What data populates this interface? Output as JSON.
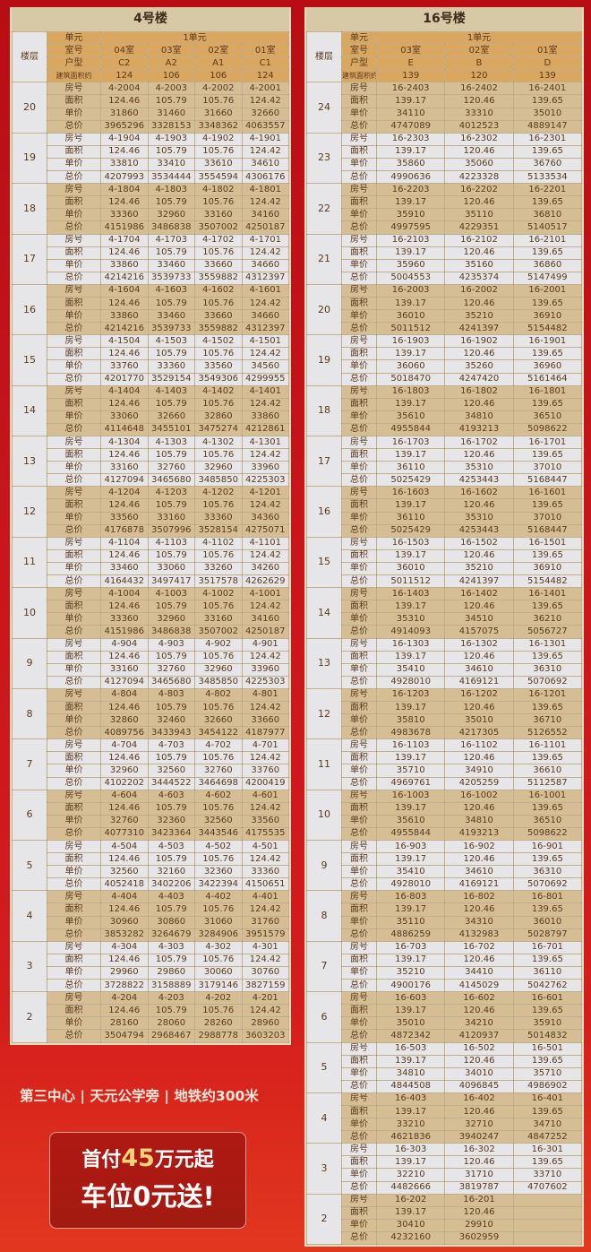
{
  "row_labels": [
    "房号",
    "面积",
    "单价",
    "总价"
  ],
  "left": {
    "title": "4号楼",
    "h": {
      "floor": "楼层",
      "unit_label": "单元",
      "unit": "1单元",
      "room_label": "室号",
      "rooms": [
        "04室",
        "03室",
        "02室",
        "01室"
      ],
      "type_label": "户型",
      "types": [
        "C2",
        "A2",
        "A1",
        "C1"
      ],
      "area_label": "建筑面积约",
      "areas": [
        "124",
        "106",
        "106",
        "124"
      ]
    },
    "floors": [
      {
        "f": "20",
        "rooms": [
          "4-2004",
          "4-2003",
          "4-2002",
          "4-2001"
        ],
        "area": [
          "124.46",
          "105.79",
          "105.76",
          "124.42"
        ],
        "price": [
          "31860",
          "31460",
          "31660",
          "32660"
        ],
        "total": [
          "3965296",
          "3328153",
          "3348362",
          "4063557"
        ]
      },
      {
        "f": "19",
        "rooms": [
          "4-1904",
          "4-1903",
          "4-1902",
          "4-1901"
        ],
        "area": [
          "124.46",
          "105.79",
          "105.76",
          "124.42"
        ],
        "price": [
          "33810",
          "33410",
          "33610",
          "34610"
        ],
        "total": [
          "4207993",
          "3534444",
          "3554594",
          "4306176"
        ]
      },
      {
        "f": "18",
        "rooms": [
          "4-1804",
          "4-1803",
          "4-1802",
          "4-1801"
        ],
        "area": [
          "124.46",
          "105.79",
          "105.76",
          "124.42"
        ],
        "price": [
          "33360",
          "32960",
          "33160",
          "34160"
        ],
        "total": [
          "4151986",
          "3486838",
          "3507002",
          "4250187"
        ]
      },
      {
        "f": "17",
        "rooms": [
          "4-1704",
          "4-1703",
          "4-1702",
          "4-1701"
        ],
        "area": [
          "124.46",
          "105.79",
          "105.76",
          "124.42"
        ],
        "price": [
          "33860",
          "33460",
          "33660",
          "34660"
        ],
        "total": [
          "4214216",
          "3539733",
          "3559882",
          "4312397"
        ]
      },
      {
        "f": "16",
        "rooms": [
          "4-1604",
          "4-1603",
          "4-1602",
          "4-1601"
        ],
        "area": [
          "124.46",
          "105.79",
          "105.76",
          "124.42"
        ],
        "price": [
          "33860",
          "33460",
          "33660",
          "34660"
        ],
        "total": [
          "4214216",
          "3539733",
          "3559882",
          "4312397"
        ]
      },
      {
        "f": "15",
        "rooms": [
          "4-1504",
          "4-1503",
          "4-1502",
          "4-1501"
        ],
        "area": [
          "124.46",
          "105.79",
          "105.76",
          "124.42"
        ],
        "price": [
          "33760",
          "33360",
          "33560",
          "34560"
        ],
        "total": [
          "4201770",
          "3529154",
          "3549306",
          "4299955"
        ]
      },
      {
        "f": "14",
        "rooms": [
          "4-1404",
          "4-1403",
          "4-1402",
          "4-1401"
        ],
        "area": [
          "124.46",
          "105.79",
          "105.76",
          "124.42"
        ],
        "price": [
          "33060",
          "32660",
          "32860",
          "33860"
        ],
        "total": [
          "4114648",
          "3455101",
          "3475274",
          "4212861"
        ]
      },
      {
        "f": "13",
        "rooms": [
          "4-1304",
          "4-1303",
          "4-1302",
          "4-1301"
        ],
        "area": [
          "124.46",
          "105.79",
          "105.76",
          "124.42"
        ],
        "price": [
          "33160",
          "32760",
          "32960",
          "33960"
        ],
        "total": [
          "4127094",
          "3465680",
          "3485850",
          "4225303"
        ]
      },
      {
        "f": "12",
        "rooms": [
          "4-1204",
          "4-1203",
          "4-1202",
          "4-1201"
        ],
        "area": [
          "124.46",
          "105.79",
          "105.76",
          "124.42"
        ],
        "price": [
          "33560",
          "33160",
          "33360",
          "34360"
        ],
        "total": [
          "4176878",
          "3507996",
          "3528154",
          "4275071"
        ]
      },
      {
        "f": "11",
        "rooms": [
          "4-1104",
          "4-1103",
          "4-1102",
          "4-1101"
        ],
        "area": [
          "124.46",
          "105.79",
          "105.76",
          "124.42"
        ],
        "price": [
          "33460",
          "33060",
          "33260",
          "34260"
        ],
        "total": [
          "4164432",
          "3497417",
          "3517578",
          "4262629"
        ]
      },
      {
        "f": "10",
        "rooms": [
          "4-1004",
          "4-1003",
          "4-1002",
          "4-1001"
        ],
        "area": [
          "124.46",
          "105.79",
          "105.76",
          "124.42"
        ],
        "price": [
          "33360",
          "32960",
          "33160",
          "34160"
        ],
        "total": [
          "4151986",
          "3486838",
          "3507002",
          "4250187"
        ]
      },
      {
        "f": "9",
        "rooms": [
          "4-904",
          "4-903",
          "4-902",
          "4-901"
        ],
        "area": [
          "124.46",
          "105.79",
          "105.76",
          "124.42"
        ],
        "price": [
          "33160",
          "32760",
          "32960",
          "33960"
        ],
        "total": [
          "4127094",
          "3465680",
          "3485850",
          "4225303"
        ]
      },
      {
        "f": "8",
        "rooms": [
          "4-804",
          "4-803",
          "4-802",
          "4-801"
        ],
        "area": [
          "124.46",
          "105.79",
          "105.76",
          "124.42"
        ],
        "price": [
          "32860",
          "32460",
          "32660",
          "33660"
        ],
        "total": [
          "4089756",
          "3433943",
          "3454122",
          "4187977"
        ]
      },
      {
        "f": "7",
        "rooms": [
          "4-704",
          "4-703",
          "4-702",
          "4-701"
        ],
        "area": [
          "124.46",
          "105.79",
          "105.76",
          "124.42"
        ],
        "price": [
          "32960",
          "32560",
          "32760",
          "33760"
        ],
        "total": [
          "4102202",
          "3444522",
          "3464698",
          "4200419"
        ]
      },
      {
        "f": "6",
        "rooms": [
          "4-604",
          "4-603",
          "4-602",
          "4-601"
        ],
        "area": [
          "124.46",
          "105.79",
          "105.76",
          "124.42"
        ],
        "price": [
          "32760",
          "32360",
          "32560",
          "33560"
        ],
        "total": [
          "4077310",
          "3423364",
          "3443546",
          "4175535"
        ]
      },
      {
        "f": "5",
        "rooms": [
          "4-504",
          "4-503",
          "4-502",
          "4-501"
        ],
        "area": [
          "124.46",
          "105.79",
          "105.76",
          "124.42"
        ],
        "price": [
          "32560",
          "32160",
          "32360",
          "33360"
        ],
        "total": [
          "4052418",
          "3402206",
          "3422394",
          "4150651"
        ]
      },
      {
        "f": "4",
        "rooms": [
          "4-404",
          "4-403",
          "4-402",
          "4-401"
        ],
        "area": [
          "124.46",
          "105.79",
          "105.76",
          "124.42"
        ],
        "price": [
          "30960",
          "30860",
          "31060",
          "31760"
        ],
        "total": [
          "3853282",
          "3264679",
          "3284906",
          "3951579"
        ]
      },
      {
        "f": "3",
        "rooms": [
          "4-304",
          "4-303",
          "4-302",
          "4-301"
        ],
        "area": [
          "124.46",
          "105.79",
          "105.76",
          "124.42"
        ],
        "price": [
          "29960",
          "29860",
          "30060",
          "30760"
        ],
        "total": [
          "3728822",
          "3158889",
          "3179146",
          "3827159"
        ]
      },
      {
        "f": "2",
        "rooms": [
          "4-204",
          "4-203",
          "4-202",
          "4-201"
        ],
        "area": [
          "124.46",
          "105.79",
          "105.76",
          "124.42"
        ],
        "price": [
          "28160",
          "28060",
          "28260",
          "28960"
        ],
        "total": [
          "3504794",
          "2968467",
          "2988778",
          "3603203"
        ]
      }
    ]
  },
  "right": {
    "title": "16号楼",
    "h": {
      "floor": "楼层",
      "unit_label": "单元",
      "unit": "1单元",
      "room_label": "室号",
      "rooms": [
        "03室",
        "02室",
        "01室"
      ],
      "type_label": "户型",
      "types": [
        "E",
        "B",
        "D"
      ],
      "area_label": "建筑面积约",
      "areas": [
        "139",
        "120",
        "139"
      ]
    },
    "floors": [
      {
        "f": "24",
        "rooms": [
          "16-2403",
          "16-2402",
          "16-2401"
        ],
        "area": [
          "139.17",
          "120.46",
          "139.65"
        ],
        "price": [
          "34110",
          "33310",
          "35010"
        ],
        "total": [
          "4747089",
          "4012523",
          "4889147"
        ]
      },
      {
        "f": "23",
        "rooms": [
          "16-2303",
          "16-2302",
          "16-2301"
        ],
        "area": [
          "139.17",
          "120.46",
          "139.65"
        ],
        "price": [
          "35860",
          "35060",
          "36760"
        ],
        "total": [
          "4990636",
          "4223328",
          "5133534"
        ]
      },
      {
        "f": "22",
        "rooms": [
          "16-2203",
          "16-2202",
          "16-2201"
        ],
        "area": [
          "139.17",
          "120.46",
          "139.65"
        ],
        "price": [
          "35910",
          "35110",
          "36810"
        ],
        "total": [
          "4997595",
          "4229351",
          "5140517"
        ]
      },
      {
        "f": "21",
        "rooms": [
          "16-2103",
          "16-2102",
          "16-2101"
        ],
        "area": [
          "139.17",
          "120.46",
          "139.65"
        ],
        "price": [
          "35960",
          "35160",
          "36860"
        ],
        "total": [
          "5004553",
          "4235374",
          "5147499"
        ]
      },
      {
        "f": "20",
        "rooms": [
          "16-2003",
          "16-2002",
          "16-2001"
        ],
        "area": [
          "139.17",
          "120.46",
          "139.65"
        ],
        "price": [
          "36010",
          "35210",
          "36910"
        ],
        "total": [
          "5011512",
          "4241397",
          "5154482"
        ]
      },
      {
        "f": "19",
        "rooms": [
          "16-1903",
          "16-1902",
          "16-1901"
        ],
        "area": [
          "139.17",
          "120.46",
          "139.65"
        ],
        "price": [
          "36060",
          "35260",
          "36960"
        ],
        "total": [
          "5018470",
          "4247420",
          "5161464"
        ]
      },
      {
        "f": "18",
        "rooms": [
          "16-1803",
          "16-1802",
          "16-1801"
        ],
        "area": [
          "139.17",
          "120.46",
          "139.65"
        ],
        "price": [
          "35610",
          "34810",
          "36510"
        ],
        "total": [
          "4955844",
          "4193213",
          "5098622"
        ]
      },
      {
        "f": "17",
        "rooms": [
          "16-1703",
          "16-1702",
          "16-1701"
        ],
        "area": [
          "139.17",
          "120.46",
          "139.65"
        ],
        "price": [
          "36110",
          "35310",
          "37010"
        ],
        "total": [
          "5025429",
          "4253443",
          "5168447"
        ]
      },
      {
        "f": "16",
        "rooms": [
          "16-1603",
          "16-1602",
          "16-1601"
        ],
        "area": [
          "139.17",
          "120.46",
          "139.65"
        ],
        "price": [
          "36110",
          "35310",
          "37010"
        ],
        "total": [
          "5025429",
          "4253443",
          "5168447"
        ]
      },
      {
        "f": "15",
        "rooms": [
          "16-1503",
          "16-1502",
          "16-1501"
        ],
        "area": [
          "139.17",
          "120.46",
          "139.65"
        ],
        "price": [
          "36010",
          "35210",
          "36910"
        ],
        "total": [
          "5011512",
          "4241397",
          "5154482"
        ]
      },
      {
        "f": "14",
        "rooms": [
          "16-1403",
          "16-1402",
          "16-1401"
        ],
        "area": [
          "139.17",
          "120.46",
          "139.65"
        ],
        "price": [
          "35310",
          "34510",
          "36210"
        ],
        "total": [
          "4914093",
          "4157075",
          "5056727"
        ]
      },
      {
        "f": "13",
        "rooms": [
          "16-1303",
          "16-1302",
          "16-1301"
        ],
        "area": [
          "139.17",
          "120.46",
          "139.65"
        ],
        "price": [
          "35410",
          "34610",
          "36310"
        ],
        "total": [
          "4928010",
          "4169121",
          "5070692"
        ]
      },
      {
        "f": "12",
        "rooms": [
          "16-1203",
          "16-1202",
          "16-1201"
        ],
        "area": [
          "139.17",
          "120.46",
          "139.65"
        ],
        "price": [
          "35810",
          "35010",
          "36710"
        ],
        "total": [
          "4983678",
          "4217305",
          "5126552"
        ]
      },
      {
        "f": "11",
        "rooms": [
          "16-1103",
          "16-1102",
          "16-1101"
        ],
        "area": [
          "139.17",
          "120.46",
          "139.65"
        ],
        "price": [
          "35710",
          "34910",
          "36610"
        ],
        "total": [
          "4969761",
          "4205259",
          "5112587"
        ]
      },
      {
        "f": "10",
        "rooms": [
          "16-1003",
          "16-1002",
          "16-1001"
        ],
        "area": [
          "139.17",
          "120.46",
          "139.65"
        ],
        "price": [
          "35610",
          "34810",
          "36510"
        ],
        "total": [
          "4955844",
          "4193213",
          "5098622"
        ]
      },
      {
        "f": "9",
        "rooms": [
          "16-903",
          "16-902",
          "16-901"
        ],
        "area": [
          "139.17",
          "120.46",
          "139.65"
        ],
        "price": [
          "35410",
          "34610",
          "36310"
        ],
        "total": [
          "4928010",
          "4169121",
          "5070692"
        ]
      },
      {
        "f": "8",
        "rooms": [
          "16-803",
          "16-802",
          "16-801"
        ],
        "area": [
          "139.17",
          "120.46",
          "139.65"
        ],
        "price": [
          "35110",
          "34310",
          "36010"
        ],
        "total": [
          "4886259",
          "4132983",
          "5028797"
        ]
      },
      {
        "f": "7",
        "rooms": [
          "16-703",
          "16-702",
          "16-701"
        ],
        "area": [
          "139.17",
          "120.46",
          "139.65"
        ],
        "price": [
          "35210",
          "34410",
          "36110"
        ],
        "total": [
          "4900176",
          "4145029",
          "5042762"
        ]
      },
      {
        "f": "6",
        "rooms": [
          "16-603",
          "16-602",
          "16-601"
        ],
        "area": [
          "139.17",
          "120.46",
          "139.65"
        ],
        "price": [
          "35010",
          "34210",
          "35910"
        ],
        "total": [
          "4872342",
          "4120937",
          "5014832"
        ]
      },
      {
        "f": "5",
        "rooms": [
          "16-503",
          "16-502",
          "16-501"
        ],
        "area": [
          "139.17",
          "120.46",
          "139.65"
        ],
        "price": [
          "34810",
          "34010",
          "35710"
        ],
        "total": [
          "4844508",
          "4096845",
          "4986902"
        ]
      },
      {
        "f": "4",
        "rooms": [
          "16-403",
          "16-402",
          "16-401"
        ],
        "area": [
          "139.17",
          "120.46",
          "139.65"
        ],
        "price": [
          "33210",
          "32710",
          "34710"
        ],
        "total": [
          "4621836",
          "3940247",
          "4847252"
        ]
      },
      {
        "f": "3",
        "rooms": [
          "16-303",
          "16-302",
          "16-301"
        ],
        "area": [
          "139.17",
          "120.46",
          "139.65"
        ],
        "price": [
          "32210",
          "31710",
          "33710"
        ],
        "total": [
          "4482666",
          "3819787",
          "4707602"
        ]
      },
      {
        "f": "2",
        "rooms": [
          "16-202",
          "16-201",
          ""
        ],
        "area": [
          "139.17",
          "120.46",
          ""
        ],
        "price": [
          "30410",
          "29910",
          ""
        ],
        "total": [
          "4232160",
          "3602959",
          ""
        ]
      }
    ]
  },
  "promo": {
    "slogan": "第三中心 | 天元公学旁 | 地铁约300米",
    "line1_a": "首付",
    "line1_num": "45",
    "line1_b": "万元起",
    "line2": "车位0元送!"
  }
}
